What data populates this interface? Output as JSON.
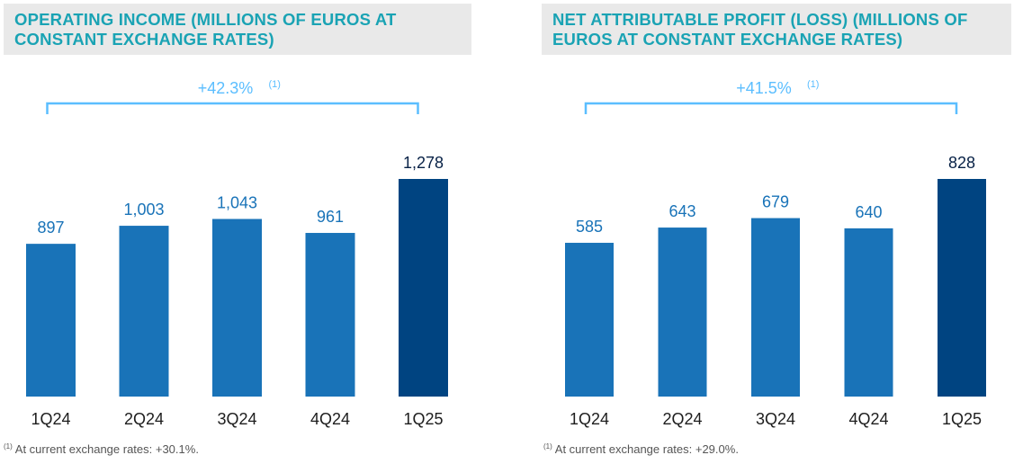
{
  "colors": {
    "bar": "#1973b8",
    "bar_highlight": "#004481",
    "bracket": "#5bbeff",
    "growth_text": "#5bbeff",
    "value_text": "#1973b8",
    "value_text_highlight": "#072146",
    "axis_text": "#1d1d1d",
    "title_text": "#1aa3b4"
  },
  "chart_data": [
    {
      "type": "bar",
      "title": "OPERATING INCOME (MILLIONS OF EUROS AT CONSTANT EXCHANGE RATES)",
      "categories": [
        "1Q24",
        "2Q24",
        "3Q24",
        "4Q24",
        "1Q25"
      ],
      "values": [
        897,
        1003,
        1043,
        961,
        1278
      ],
      "value_labels": [
        "897",
        "1,003",
        "1,043",
        "961",
        "1,278"
      ],
      "highlight_index": 4,
      "growth_label": "+42.3%",
      "growth_note": "(1)",
      "footnote_marker": "(1)",
      "footnote": "At current exchange rates: +30.1%.",
      "xlabel": "",
      "ylabel": "",
      "ylim": [
        0,
        1278
      ]
    },
    {
      "type": "bar",
      "title": "NET ATTRIBUTABLE PROFIT (LOSS) (MILLIONS OF EUROS AT CONSTANT EXCHANGE RATES)",
      "categories": [
        "1Q24",
        "2Q24",
        "3Q24",
        "4Q24",
        "1Q25"
      ],
      "values": [
        585,
        643,
        679,
        640,
        828
      ],
      "value_labels": [
        "585",
        "643",
        "679",
        "640",
        "828"
      ],
      "highlight_index": 4,
      "growth_label": "+41.5%",
      "growth_note": "(1)",
      "footnote_marker": "(1)",
      "footnote": "At current exchange rates: +29.0%.",
      "xlabel": "",
      "ylabel": "",
      "ylim": [
        0,
        828
      ]
    }
  ]
}
